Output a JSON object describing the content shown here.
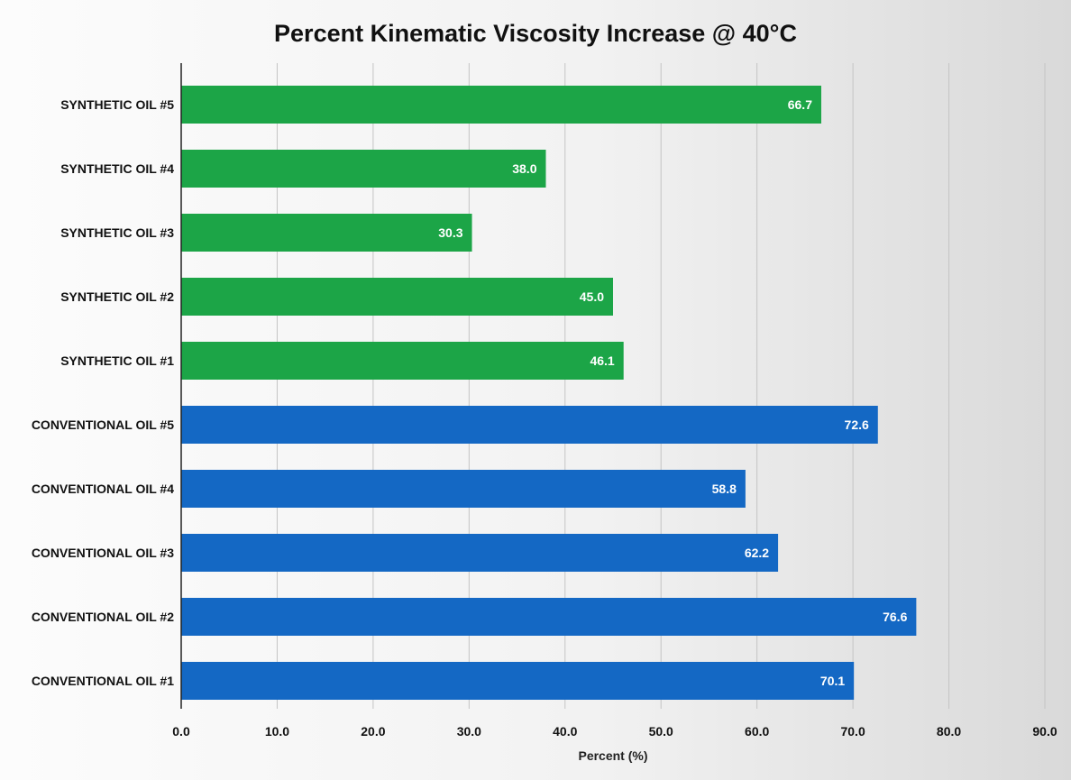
{
  "chart_data": {
    "type": "bar",
    "orientation": "horizontal",
    "title": "Percent Kinematic Viscosity Increase @ 40°C",
    "xlabel": "Percent (%)",
    "ylabel": "",
    "xlim": [
      0,
      90
    ],
    "ticks": [
      "0.0",
      "10.0",
      "20.0",
      "30.0",
      "40.0",
      "50.0",
      "60.0",
      "70.0",
      "80.0",
      "90.0"
    ],
    "grid": "vertical",
    "legend": "none",
    "categories": [
      "SYNTHETIC OIL #5",
      "SYNTHETIC OIL #4",
      "SYNTHETIC OIL #3",
      "SYNTHETIC OIL #2",
      "SYNTHETIC OIL #1",
      "CONVENTIONAL OIL #5",
      "CONVENTIONAL OIL #4",
      "CONVENTIONAL OIL #3",
      "CONVENTIONAL OIL #2",
      "CONVENTIONAL OIL #1"
    ],
    "values": [
      66.7,
      38.0,
      30.3,
      45.0,
      46.1,
      72.6,
      58.8,
      62.2,
      76.6,
      70.1
    ],
    "value_labels": [
      "66.7",
      "38.0",
      "30.3",
      "45.0",
      "46.1",
      "72.6",
      "58.8",
      "62.2",
      "76.6",
      "70.1"
    ],
    "colors": [
      "#1ca547",
      "#1ca547",
      "#1ca547",
      "#1ca547",
      "#1ca547",
      "#1468c4",
      "#1468c4",
      "#1468c4",
      "#1468c4",
      "#1468c4"
    ]
  }
}
